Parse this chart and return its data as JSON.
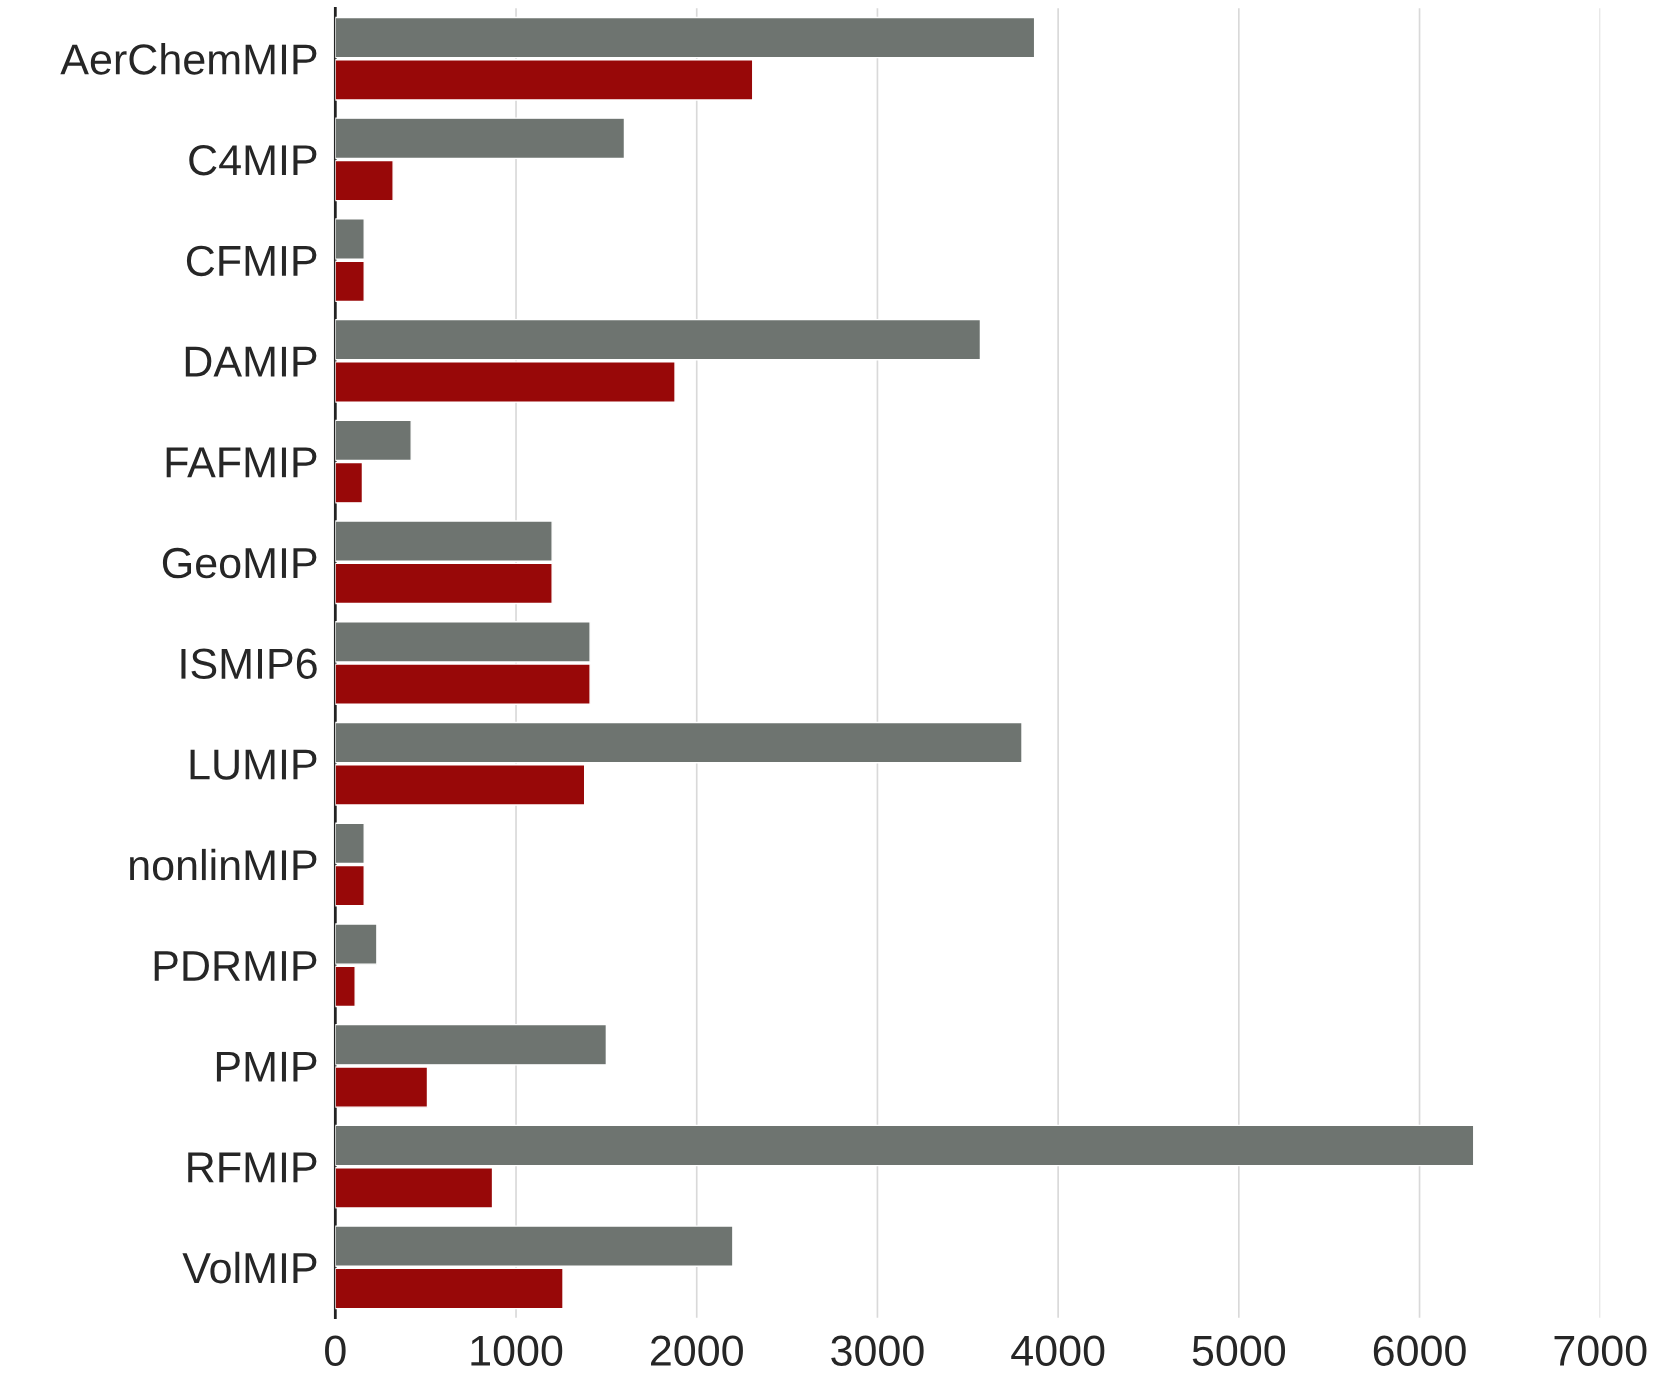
{
  "chart_data": {
    "type": "bar",
    "orientation": "horizontal",
    "categories": [
      "AerChemMIP",
      "C4MIP",
      "CFMIP",
      "DAMIP",
      "FAFMIP",
      "GeoMIP",
      "ISMIP6",
      "LUMIP",
      "nonlinMIP",
      "PDRMIP",
      "PMIP",
      "RFMIP",
      "VolMIP"
    ],
    "series": [
      {
        "color": "#6e7470",
        "values": [
          3870,
          1600,
          160,
          3570,
          420,
          1200,
          1410,
          3800,
          160,
          230,
          1500,
          6300,
          2200
        ]
      },
      {
        "color": "#980808",
        "values": [
          2310,
          320,
          160,
          1880,
          150,
          1200,
          1410,
          1380,
          160,
          110,
          510,
          870,
          1260
        ]
      }
    ],
    "xlim": [
      0,
      7000
    ],
    "xticks": [
      0,
      1000,
      2000,
      3000,
      4000,
      5000,
      6000,
      7000
    ],
    "grid": "x",
    "legend": false
  }
}
